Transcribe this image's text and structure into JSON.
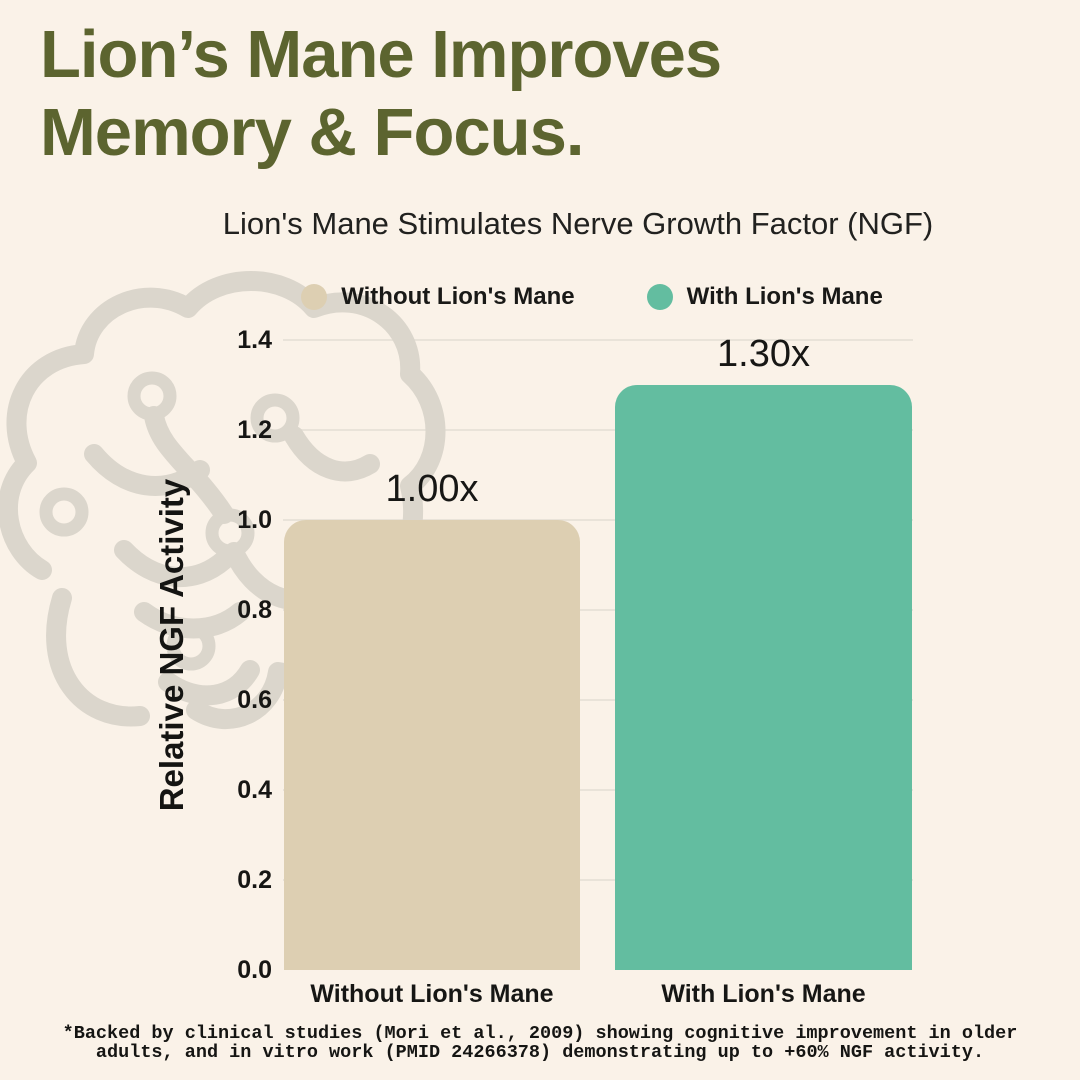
{
  "page": {
    "title_line1": "Lion’s Mane Improves",
    "title_line2": "Memory & Focus.",
    "footnote_line1": "*Backed by clinical studies (Mori et al., 2009) showing cognitive improvement in older",
    "footnote_line2": "adults, and in vitro work (PMID 24266378) demonstrating up to +60% NGF activity."
  },
  "colors": {
    "background": "#FAF2E8",
    "title_olive": "#5C642F",
    "bar_without": "#DDCFB2",
    "bar_with": "#63BDA0",
    "gridline": "#E9E3D9",
    "brain_outline": "#DBD6CC",
    "text_dark": "#161614"
  },
  "icons": {
    "brain": "brain-outline-illustration"
  },
  "chart_data": {
    "type": "bar",
    "title": "Lion's Mane Stimulates Nerve Growth Factor (NGF)",
    "categories": [
      "Without Lion's Mane",
      "With Lion's Mane"
    ],
    "values": [
      1.0,
      1.3
    ],
    "value_labels": [
      "1.00x",
      "1.30x"
    ],
    "xlabel": "",
    "ylabel": "Relative NGF Activity",
    "ylim": [
      0.0,
      1.4
    ],
    "yticks": [
      1.4,
      1.2,
      1.0,
      0.8,
      0.6,
      0.4,
      0.2,
      0.0
    ],
    "grid": true,
    "legend_position": "top",
    "legend": [
      {
        "label": "Without Lion's Mane",
        "color": "#DDCFB2"
      },
      {
        "label": "With Lion's Mane",
        "color": "#63BDA0"
      }
    ]
  }
}
